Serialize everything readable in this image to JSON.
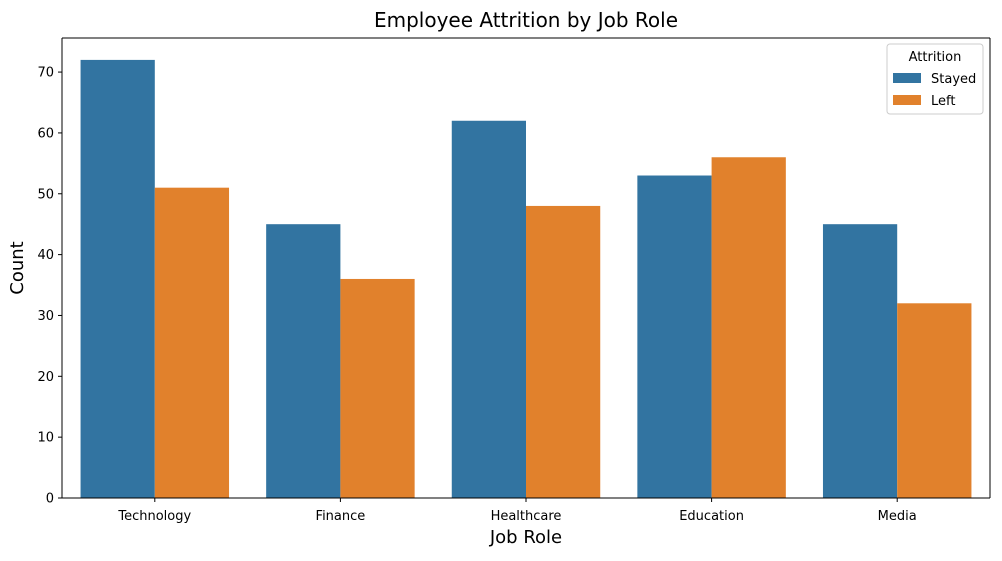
{
  "chart_data": {
    "type": "bar",
    "title": "Employee Attrition by Job Role",
    "xlabel": "Job Role",
    "ylabel": "Count",
    "categories": [
      "Technology",
      "Finance",
      "Healthcare",
      "Education",
      "Media"
    ],
    "series": [
      {
        "name": "Stayed",
        "values": [
          72,
          45,
          62,
          53,
          45
        ],
        "color": "#3274a1"
      },
      {
        "name": "Left",
        "values": [
          51,
          36,
          48,
          56,
          32
        ],
        "color": "#e1812c"
      }
    ],
    "ylim": [
      0,
      75.6
    ],
    "yticks": [
      "0",
      "10",
      "20",
      "30",
      "40",
      "50",
      "60",
      "70"
    ],
    "grid": false,
    "legend": {
      "title": "Attrition",
      "placement": "top-right"
    }
  }
}
